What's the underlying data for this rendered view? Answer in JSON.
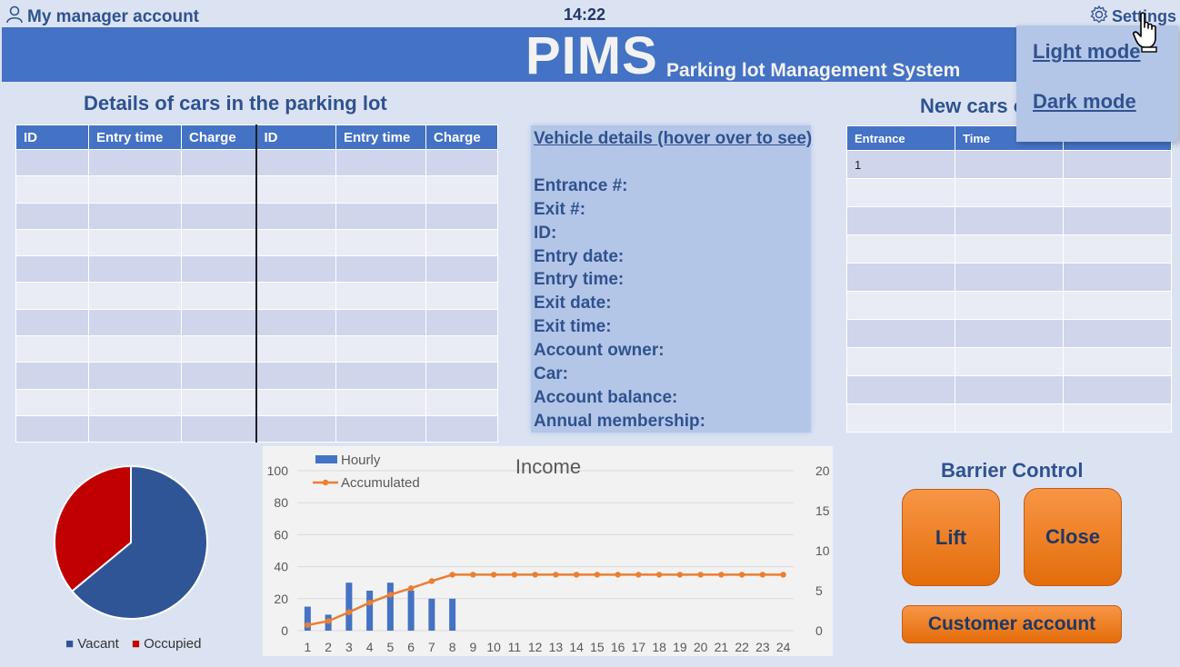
{
  "header": {
    "account_label": "My manager account",
    "clock": "14:22",
    "settings_label": "Settings",
    "app_title": "PIMS",
    "app_subtitle": "Parking lot Management System"
  },
  "settings_menu": {
    "light_mode": "Light mode",
    "dark_mode": "Dark mode"
  },
  "cars_section": {
    "title": "Details of cars in the parking lot",
    "columns": [
      "ID",
      "Entry time",
      "Charge",
      "ID",
      "Entry time",
      "Charge"
    ]
  },
  "vehicle_details": {
    "title": "Vehicle details (hover over to see)",
    "fields": [
      "Entrance #:",
      "Exit #:",
      "ID:",
      "Entry date:",
      "Entry time:",
      "Exit date:",
      "Exit time:",
      "Account owner:",
      "Car:",
      "Account balance:",
      "Annual membership:"
    ]
  },
  "new_cars_section": {
    "title": "New cars o",
    "columns": [
      "Entrance",
      "Time",
      ""
    ],
    "first_entrance": "1"
  },
  "pie_chart": {
    "legend": [
      "Vacant",
      "Occupied"
    ],
    "colors": {
      "vacant": "#2f5597",
      "occupied": "#c00000"
    }
  },
  "chart_data": {
    "type": "bar",
    "title": "Income",
    "categories": [
      "1",
      "2",
      "3",
      "4",
      "5",
      "6",
      "7",
      "8",
      "9",
      "10",
      "11",
      "12",
      "13",
      "14",
      "15",
      "16",
      "17",
      "18",
      "19",
      "20",
      "21",
      "22",
      "23",
      "24"
    ],
    "series": [
      {
        "name": "Hourly",
        "type": "bar",
        "axis": "left",
        "color": "#4472c4",
        "values": [
          15,
          10,
          30,
          25,
          30,
          25,
          20,
          20,
          0,
          0,
          0,
          0,
          0,
          0,
          0,
          0,
          0,
          0,
          0,
          0,
          0,
          0,
          0,
          0
        ]
      },
      {
        "name": "Accumulated",
        "type": "line",
        "axis": "right",
        "color": "#ed7d31",
        "values": [
          0.7,
          1.2,
          2.3,
          3.5,
          4.5,
          5.3,
          6.2,
          7,
          7,
          7,
          7,
          7,
          7,
          7,
          7,
          7,
          7,
          7,
          7,
          7,
          7,
          7,
          7,
          7
        ]
      }
    ],
    "left_ylim": [
      0,
      100
    ],
    "left_ticks": [
      0,
      20,
      40,
      60,
      80,
      100
    ],
    "right_ylim": [
      0,
      20
    ],
    "right_ticks": [
      0,
      5,
      10,
      15,
      20
    ],
    "grid": true,
    "legend_position": "top-left"
  },
  "barrier": {
    "title": "Barrier Control",
    "lift_label": "Lift",
    "close_label": "Close",
    "customer_account_label": "Customer account"
  }
}
